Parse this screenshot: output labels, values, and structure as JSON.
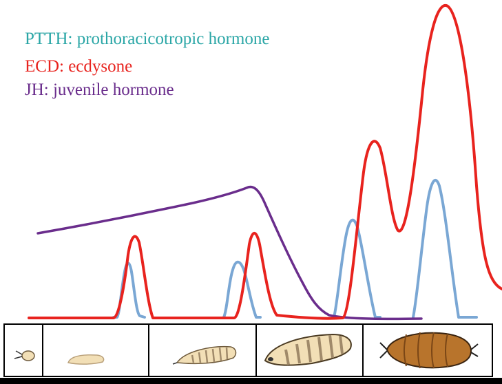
{
  "legend": {
    "ptth": {
      "label": "PTTH: prothoracicotropic hormone",
      "color": "#2aa6a6"
    },
    "ecd": {
      "label": "ECD: ecdysone",
      "color": "#e8231e"
    },
    "jh": {
      "label": "JH: juvenile hormone",
      "color": "#6a2d8c"
    }
  },
  "stages": [
    {
      "name": "egg-stage"
    },
    {
      "name": "first-instar-larva"
    },
    {
      "name": "second-instar-larva"
    },
    {
      "name": "third-instar-larva"
    },
    {
      "name": "pupa"
    }
  ],
  "colors": {
    "ptth_line": "#7aa7d4",
    "background": "#ffffff",
    "frame": "#000000",
    "larva_fill": "#f2dfb6",
    "larva_stripe": "#a08a6a",
    "pupa_fill": "#b8742c",
    "pupa_stripe": "#7a4616"
  }
}
